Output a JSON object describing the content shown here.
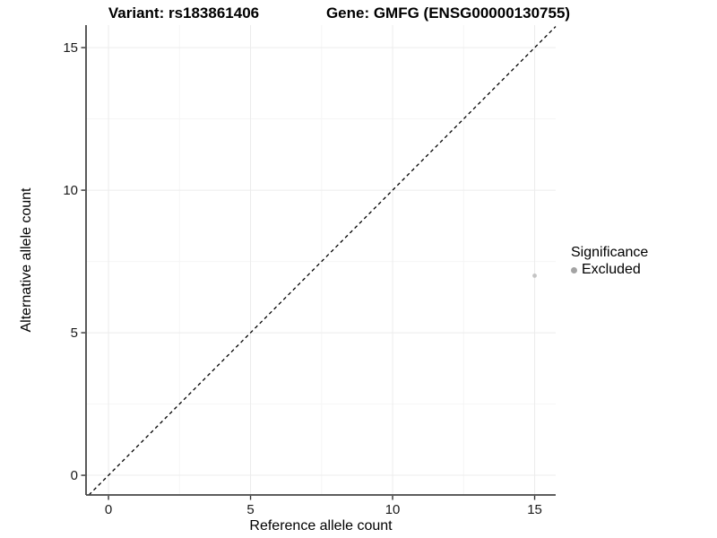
{
  "titles": {
    "variant": "Variant: rs183861406",
    "gene": "Gene: GMFG (ENSG00000130755)"
  },
  "chart_data": {
    "type": "scatter",
    "xlabel": "Reference allele count",
    "ylabel": "Alternative allele count",
    "xlim": [
      -0.79,
      15.74
    ],
    "ylim": [
      -0.69,
      15.79
    ],
    "xticks": [
      0,
      5,
      10,
      15
    ],
    "yticks": [
      0,
      5,
      10,
      15
    ],
    "xticks_minor": [
      2.5,
      7.5,
      12.5
    ],
    "yticks_minor": [
      2.5,
      7.5,
      12.5
    ],
    "grid": "on",
    "points": [
      {
        "x": 15,
        "y": 7,
        "series": "Excluded"
      }
    ],
    "identity_line": {
      "slope": 1,
      "intercept": 0,
      "style": "dashed"
    },
    "legend": {
      "position": "right",
      "title": "Significance",
      "items": [
        {
          "label": "Excluded",
          "color": "#a3a3a3"
        }
      ]
    },
    "colors": {
      "background": "#ffffff",
      "grid_major": "#ececec",
      "grid_minor": "#f5f5f5",
      "axis_line": "#474747",
      "tick_mark": "#333333",
      "tick_label": "#1a1a1a",
      "identity_line": "#000000",
      "point": "#c4c4c4"
    }
  }
}
